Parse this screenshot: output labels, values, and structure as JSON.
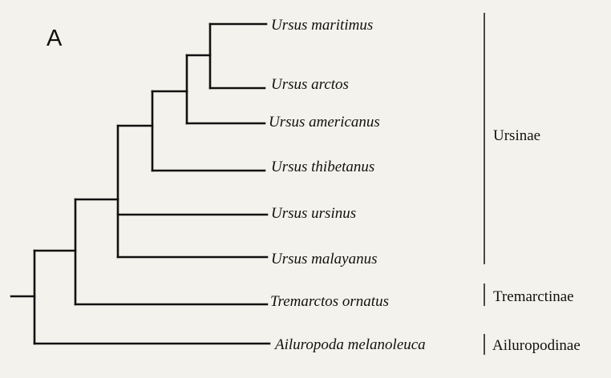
{
  "panel_label": "A",
  "taxa": [
    "Ursus maritimus",
    "Ursus arctos",
    "Ursus americanus",
    "Ursus thibetanus",
    "Ursus ursinus",
    "Ursus malayanus",
    "Tremarctos ornatus",
    "Ailuropoda melanoleuca"
  ],
  "groups": [
    "Ursinae",
    "Tremarctinae",
    "Ailuropodinae"
  ]
}
